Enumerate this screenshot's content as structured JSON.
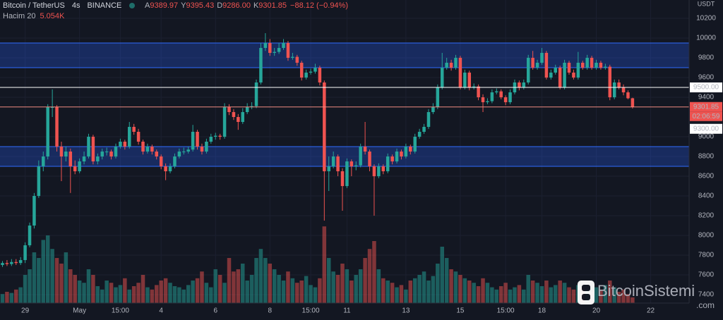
{
  "header": {
    "symbol": "Bitcoin / TetherUS",
    "interval": "4s",
    "exchange": "BINANCE",
    "ohlc": [
      {
        "key": "A",
        "value": "9389.97"
      },
      {
        "key": "Y",
        "value": "9395.43"
      },
      {
        "key": "D",
        "value": "9286.00"
      },
      {
        "key": "K",
        "value": "9301.85"
      }
    ],
    "change": "−88.12 (−0.94%)",
    "volume_name": "Hacim 20",
    "volume_value": "5.054K"
  },
  "watermark": {
    "name": "BitcoinSistemi",
    "suffix": ".com"
  },
  "chart_data": {
    "type": "candlestick",
    "currency": "USDT",
    "up_color": "#26a69a",
    "down_color": "#ef5350",
    "grid": true,
    "ylim": [
      7314,
      10386
    ],
    "yticks": [
      7400,
      7600,
      7800,
      8000,
      8200,
      8400,
      8600,
      8800,
      9000,
      9400,
      9600,
      9800,
      10000,
      10200
    ],
    "zones": [
      {
        "from": 9700,
        "to": 9950
      },
      {
        "from": 8700,
        "to": 8900
      }
    ],
    "hlines": [
      {
        "value": 9500,
        "label": "9500.00",
        "color": "#ffffff"
      },
      {
        "value": 9301.85,
        "label": "9301.85",
        "countdown": "02:06:59",
        "color": "#f28b82"
      }
    ],
    "extra_price_label": "9300.00",
    "categories": [
      null,
      null,
      null,
      null,
      null,
      "29",
      null,
      null,
      null,
      null,
      null,
      null,
      null,
      null,
      null,
      null,
      null,
      "May",
      null,
      null,
      null,
      null,
      null,
      null,
      null,
      null,
      "15:00",
      null,
      null,
      null,
      null,
      null,
      null,
      null,
      null,
      "4",
      null,
      null,
      null,
      null,
      null,
      null,
      null,
      null,
      null,
      null,
      null,
      "6",
      null,
      null,
      null,
      null,
      null,
      null,
      null,
      null,
      null,
      null,
      null,
      "8",
      null,
      null,
      null,
      null,
      null,
      null,
      null,
      null,
      "15:00",
      null,
      null,
      null,
      null,
      null,
      null,
      null,
      "11",
      null,
      null,
      null,
      null,
      null,
      null,
      null,
      null,
      null,
      null,
      null,
      null,
      "13",
      null,
      null,
      null,
      null,
      null,
      null,
      null,
      null,
      null,
      null,
      null,
      "15",
      null,
      null,
      null,
      null,
      null,
      null,
      null,
      null,
      null,
      "15:00",
      null,
      null,
      null,
      null,
      null,
      null,
      null,
      "18",
      null,
      null,
      null,
      null,
      null,
      null,
      null,
      null,
      null,
      null,
      null,
      "20",
      null,
      null,
      null,
      null,
      null,
      null,
      null,
      null,
      null,
      null,
      null,
      "22"
    ],
    "candles": [
      [
        7700,
        7740,
        7680,
        7720
      ],
      [
        7720,
        7750,
        7690,
        7710
      ],
      [
        7710,
        7760,
        7690,
        7730
      ],
      [
        7730,
        7760,
        7700,
        7720
      ],
      [
        7720,
        7780,
        7700,
        7750
      ],
      [
        7750,
        7930,
        7720,
        7900
      ],
      [
        7900,
        8130,
        7880,
        8100
      ],
      [
        8100,
        8430,
        8070,
        8400
      ],
      [
        8400,
        8760,
        8380,
        8700
      ],
      [
        8700,
        8850,
        8650,
        8800
      ],
      [
        8800,
        9330,
        8770,
        9300
      ],
      [
        9300,
        9480,
        9200,
        9300
      ],
      [
        9300,
        9320,
        8850,
        8900
      ],
      [
        8900,
        8950,
        8550,
        8800
      ],
      [
        8800,
        8900,
        8750,
        8850
      ],
      [
        8850,
        8880,
        8430,
        8700
      ],
      [
        8700,
        8760,
        8620,
        8650
      ],
      [
        8650,
        8780,
        8630,
        8750
      ],
      [
        8750,
        8850,
        8720,
        8800
      ],
      [
        8800,
        9030,
        8780,
        9000
      ],
      [
        9000,
        9020,
        8720,
        8750
      ],
      [
        8750,
        8830,
        8720,
        8800
      ],
      [
        8800,
        8880,
        8770,
        8850
      ],
      [
        8850,
        8890,
        8810,
        8850
      ],
      [
        8850,
        8870,
        8770,
        8800
      ],
      [
        8800,
        8930,
        8780,
        8900
      ],
      [
        8900,
        8980,
        8880,
        8950
      ],
      [
        8950,
        8970,
        8870,
        8900
      ],
      [
        8900,
        9150,
        8880,
        9100
      ],
      [
        9100,
        9130,
        9020,
        9050
      ],
      [
        9050,
        9080,
        8920,
        8950
      ],
      [
        8950,
        8970,
        8820,
        8850
      ],
      [
        8850,
        8930,
        8830,
        8900
      ],
      [
        8900,
        8920,
        8820,
        8850
      ],
      [
        8850,
        8870,
        8770,
        8800
      ],
      [
        8800,
        8820,
        8670,
        8700
      ],
      [
        8700,
        8730,
        8560,
        8650
      ],
      [
        8650,
        8730,
        8630,
        8700
      ],
      [
        8700,
        8830,
        8680,
        8800
      ],
      [
        8800,
        8880,
        8780,
        8850
      ],
      [
        8850,
        8890,
        8820,
        8850
      ],
      [
        8850,
        8900,
        8830,
        8870
      ],
      [
        8870,
        9120,
        8850,
        9050
      ],
      [
        9050,
        9070,
        8870,
        8900
      ],
      [
        8900,
        8930,
        8820,
        8850
      ],
      [
        8850,
        8980,
        8830,
        8950
      ],
      [
        8950,
        9030,
        8930,
        9000
      ],
      [
        9000,
        9040,
        8970,
        9010
      ],
      [
        9010,
        9030,
        8970,
        9000
      ],
      [
        9000,
        9340,
        8980,
        9300
      ],
      [
        9300,
        9330,
        9220,
        9250
      ],
      [
        9250,
        9280,
        9170,
        9200
      ],
      [
        9200,
        9230,
        9070,
        9150
      ],
      [
        9150,
        9290,
        9130,
        9250
      ],
      [
        9250,
        9340,
        9230,
        9300
      ],
      [
        9300,
        9350,
        9280,
        9310
      ],
      [
        9310,
        9580,
        9290,
        9550
      ],
      [
        9550,
        9950,
        9530,
        9900
      ],
      [
        9900,
        10050,
        9870,
        9950
      ],
      [
        9950,
        9990,
        9820,
        9850
      ],
      [
        9850,
        9900,
        9820,
        9860
      ],
      [
        9860,
        9950,
        9840,
        9900
      ],
      [
        9900,
        9990,
        9880,
        9950
      ],
      [
        9950,
        9970,
        9770,
        9800
      ],
      [
        9800,
        9850,
        9780,
        9810
      ],
      [
        9810,
        9830,
        9720,
        9750
      ],
      [
        9750,
        9770,
        9570,
        9600
      ],
      [
        9600,
        9680,
        9580,
        9650
      ],
      [
        9650,
        9690,
        9630,
        9660
      ],
      [
        9660,
        9740,
        9640,
        9700
      ],
      [
        9700,
        9720,
        9520,
        9550
      ],
      [
        9550,
        9570,
        8150,
        8650
      ],
      [
        8650,
        8800,
        8450,
        8700
      ],
      [
        8700,
        8850,
        8680,
        8800
      ],
      [
        8800,
        8820,
        8600,
        8650
      ],
      [
        8650,
        8680,
        8250,
        8500
      ],
      [
        8500,
        8780,
        8480,
        8750
      ],
      [
        8750,
        8770,
        8600,
        8700
      ],
      [
        8700,
        8750,
        8660,
        8710
      ],
      [
        8710,
        8930,
        8690,
        8900
      ],
      [
        8900,
        9150,
        8820,
        8850
      ],
      [
        8850,
        8870,
        8650,
        8700
      ],
      [
        8700,
        8720,
        8200,
        8600
      ],
      [
        8600,
        8730,
        8580,
        8700
      ],
      [
        8700,
        8720,
        8620,
        8650
      ],
      [
        8650,
        8830,
        8630,
        8800
      ],
      [
        8800,
        8820,
        8720,
        8750
      ],
      [
        8750,
        8880,
        8730,
        8850
      ],
      [
        8850,
        8870,
        8770,
        8800
      ],
      [
        8800,
        8930,
        8780,
        8900
      ],
      [
        8900,
        8920,
        8820,
        8850
      ],
      [
        8850,
        9030,
        8830,
        9000
      ],
      [
        9000,
        9080,
        8980,
        9050
      ],
      [
        9050,
        9130,
        9030,
        9100
      ],
      [
        9100,
        9280,
        9080,
        9250
      ],
      [
        9250,
        9340,
        9230,
        9300
      ],
      [
        9300,
        9530,
        9280,
        9500
      ],
      [
        9500,
        9850,
        9480,
        9700
      ],
      [
        9700,
        9800,
        9680,
        9750
      ],
      [
        9750,
        9780,
        9670,
        9700
      ],
      [
        9700,
        9830,
        9680,
        9800
      ],
      [
        9800,
        9820,
        9480,
        9500
      ],
      [
        9500,
        9680,
        9480,
        9650
      ],
      [
        9650,
        9670,
        9470,
        9500
      ],
      [
        9500,
        9540,
        9480,
        9510
      ],
      [
        9510,
        9530,
        9370,
        9400
      ],
      [
        9400,
        9430,
        9250,
        9350
      ],
      [
        9350,
        9390,
        9330,
        9360
      ],
      [
        9360,
        9480,
        9340,
        9450
      ],
      [
        9450,
        9490,
        9430,
        9460
      ],
      [
        9460,
        9480,
        9380,
        9400
      ],
      [
        9400,
        9420,
        9320,
        9350
      ],
      [
        9350,
        9480,
        9330,
        9450
      ],
      [
        9450,
        9580,
        9430,
        9550
      ],
      [
        9550,
        9570,
        9470,
        9500
      ],
      [
        9500,
        9580,
        9480,
        9550
      ],
      [
        9550,
        9830,
        9530,
        9800
      ],
      [
        9800,
        9870,
        9680,
        9700
      ],
      [
        9700,
        9780,
        9680,
        9750
      ],
      [
        9750,
        9900,
        9730,
        9850
      ],
      [
        9850,
        9870,
        9580,
        9600
      ],
      [
        9600,
        9680,
        9580,
        9650
      ],
      [
        9650,
        9730,
        9630,
        9700
      ],
      [
        9700,
        9720,
        9480,
        9500
      ],
      [
        9500,
        9780,
        9480,
        9750
      ],
      [
        9750,
        9770,
        9630,
        9650
      ],
      [
        9650,
        9680,
        9580,
        9600
      ],
      [
        9600,
        9860,
        9580,
        9750
      ],
      [
        9750,
        9770,
        9680,
        9700
      ],
      [
        9700,
        9830,
        9680,
        9800
      ],
      [
        9800,
        9820,
        9680,
        9700
      ],
      [
        9700,
        9780,
        9680,
        9750
      ],
      [
        9750,
        9770,
        9680,
        9700
      ],
      [
        9700,
        9740,
        9680,
        9710
      ],
      [
        9710,
        9730,
        9370,
        9400
      ],
      [
        9400,
        9580,
        9380,
        9550
      ],
      [
        9550,
        9580,
        9480,
        9500
      ],
      [
        9500,
        9530,
        9420,
        9450
      ],
      [
        9450,
        9470,
        9380,
        9389.97
      ],
      [
        9389.97,
        9395.43,
        9286,
        9301.85
      ],
      null,
      null,
      null,
      null
    ],
    "volume": [
      8,
      10,
      9,
      12,
      14,
      25,
      30,
      45,
      40,
      56,
      60,
      48,
      40,
      35,
      45,
      30,
      25,
      20,
      18,
      30,
      25,
      15,
      12,
      20,
      18,
      14,
      16,
      22,
      12,
      15,
      18,
      25,
      14,
      12,
      16,
      20,
      22,
      18,
      15,
      14,
      12,
      16,
      20,
      22,
      28,
      18,
      14,
      30,
      25,
      18,
      40,
      28,
      30,
      35,
      20,
      25,
      40,
      48,
      40,
      35,
      30,
      25,
      20,
      28,
      22,
      18,
      20,
      24,
      16,
      14,
      22,
      68,
      40,
      28,
      25,
      35,
      30,
      20,
      25,
      30,
      40,
      48,
      55,
      30,
      22,
      20,
      18,
      14,
      16,
      12,
      20,
      22,
      25,
      28,
      20,
      24,
      35,
      50,
      40,
      30,
      28,
      25,
      22,
      20,
      18,
      15,
      22,
      18,
      14,
      12,
      15,
      18,
      12,
      14,
      16,
      12,
      25,
      20,
      18,
      15,
      20,
      14,
      16,
      20,
      18,
      14,
      12,
      16,
      14,
      12,
      10,
      14,
      12,
      16,
      20,
      14,
      10,
      12,
      8,
      5.054,
      null,
      null,
      null,
      null
    ]
  }
}
